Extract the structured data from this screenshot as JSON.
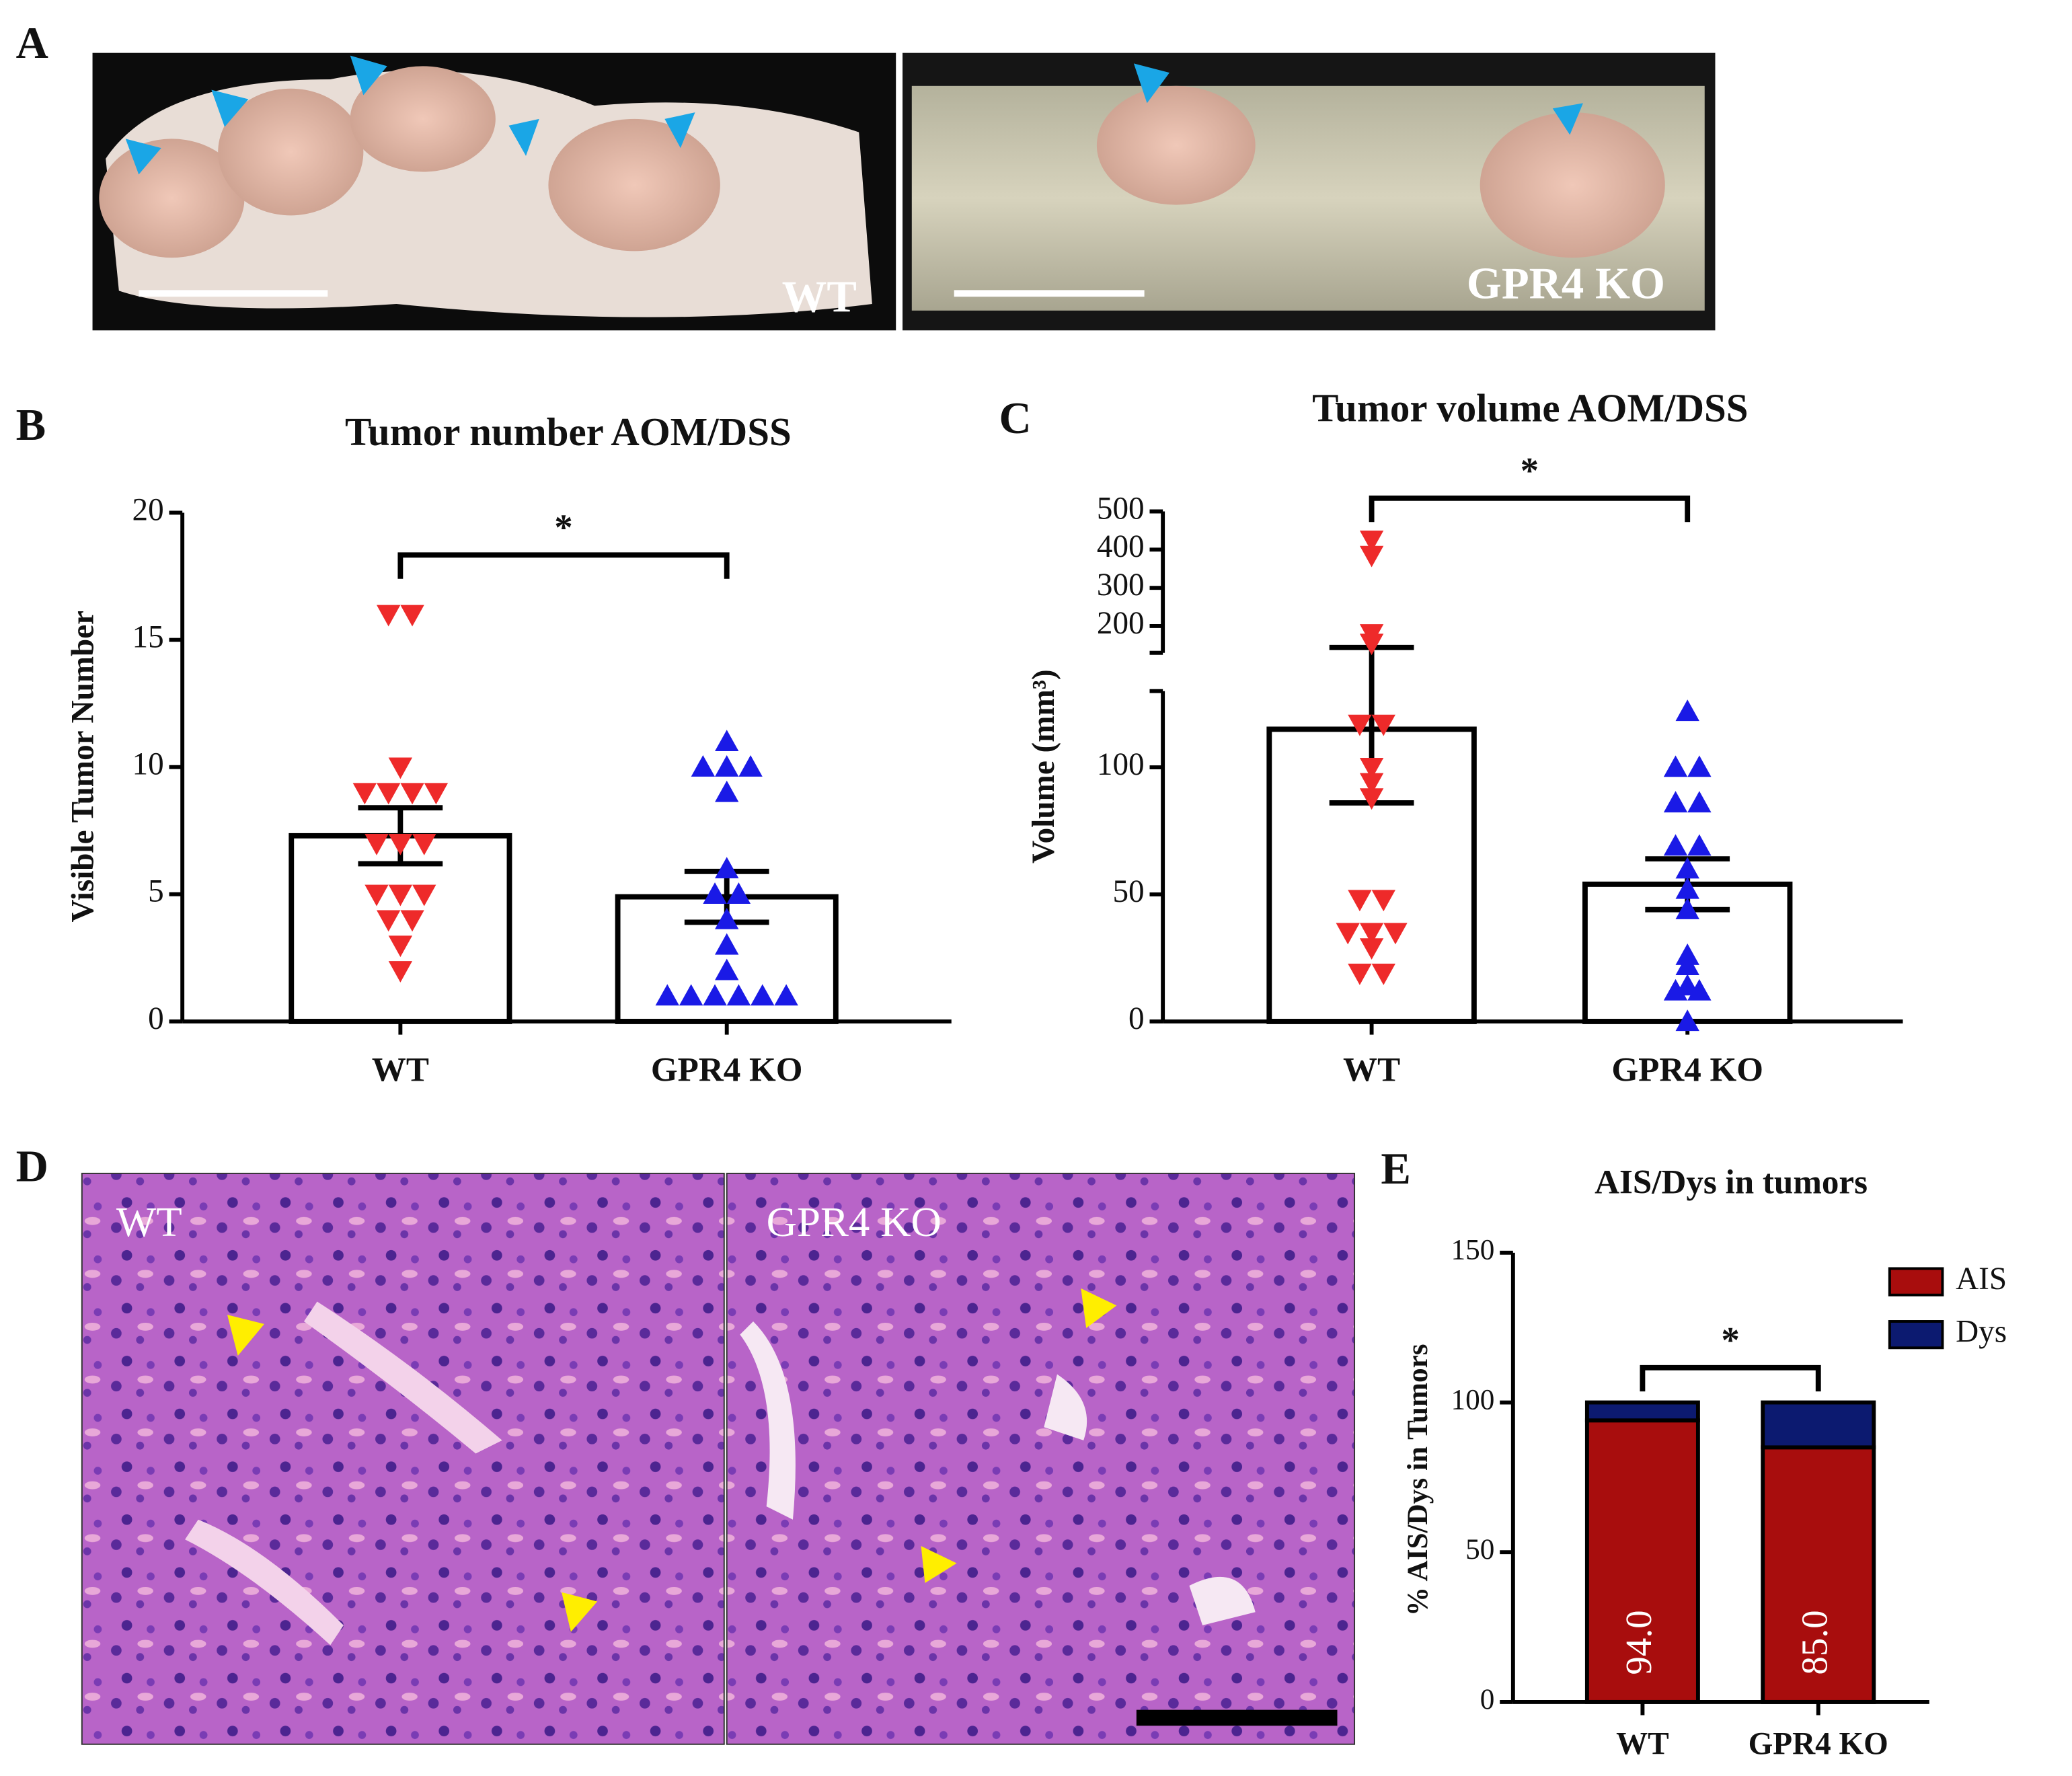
{
  "panels": {
    "A": {
      "letter": "A",
      "images": [
        {
          "label": "WT"
        },
        {
          "label": "GPR4 KO"
        }
      ]
    },
    "D": {
      "letter": "D",
      "images": [
        {
          "label": "WT"
        },
        {
          "label": "GPR4 KO"
        }
      ]
    }
  },
  "chart_data": [
    {
      "type": "bar",
      "letter": "B",
      "title": "Tumor number AOM/DSS",
      "y_label": "Visible Tumor Number",
      "categories": [
        "WT",
        "GPR4 KO"
      ],
      "values": [
        7.3,
        4.9
      ],
      "errors": [
        1.1,
        1.0
      ],
      "points": [
        {
          "marker": "triangle-down",
          "color": "#ee2a2a",
          "values": [
            16,
            16,
            10,
            9,
            9,
            9,
            9,
            7,
            7,
            7,
            5,
            5,
            5,
            4,
            4,
            3,
            2
          ]
        },
        {
          "marker": "triangle-up",
          "color": "#1a1ae6",
          "values": [
            11,
            10,
            10,
            10,
            9,
            6,
            5,
            5,
            4,
            3,
            2,
            1,
            1,
            1,
            1,
            1,
            1
          ]
        }
      ],
      "ylim": [
        0,
        20
      ],
      "yticks": [
        0,
        5,
        10,
        15,
        20
      ],
      "significance": {
        "label": "*"
      }
    },
    {
      "type": "bar",
      "letter": "C",
      "title": "Tumor volume AOM/DSS",
      "y_label": "Volume (mm³)",
      "categories": [
        "WT",
        "GPR4 KO"
      ],
      "values": [
        115,
        54
      ],
      "errors": [
        29,
        10
      ],
      "points": [
        {
          "marker": "triangle-down",
          "color": "#ee2a2a",
          "values": [
            425,
            385,
            180,
            155,
            117,
            117,
            100,
            94,
            88,
            48,
            48,
            35,
            35,
            35,
            29,
            19,
            19
          ]
        },
        {
          "marker": "triangle-up",
          "color": "#1a1ae6",
          "values": [
            122,
            100,
            100,
            86,
            86,
            69,
            69,
            60,
            52,
            44,
            26,
            22,
            14,
            12,
            12,
            0
          ]
        }
      ],
      "ysegments": [
        {
          "ylim": [
            0,
            130
          ],
          "yticks": [
            0,
            50,
            100
          ]
        },
        {
          "ylim": [
            130,
            500
          ],
          "yticks": [
            200,
            300,
            400,
            500
          ]
        }
      ],
      "significance": {
        "label": "*"
      }
    },
    {
      "type": "stacked-bar",
      "letter": "E",
      "title": "AIS/Dys in tumors",
      "y_label": "% AIS/Dys in Tumors",
      "categories": [
        "WT",
        "GPR4 KO"
      ],
      "series": [
        {
          "name": "AIS",
          "color": "#a80d0d",
          "values": [
            94,
            85
          ],
          "value_labels": [
            "94.0",
            "85.0"
          ]
        },
        {
          "name": "Dys",
          "color": "#0c1a70",
          "values": [
            6,
            15
          ]
        }
      ],
      "ylim": [
        0,
        150
      ],
      "yticks": [
        0,
        50,
        100,
        150
      ],
      "significance": {
        "label": "*"
      }
    }
  ]
}
